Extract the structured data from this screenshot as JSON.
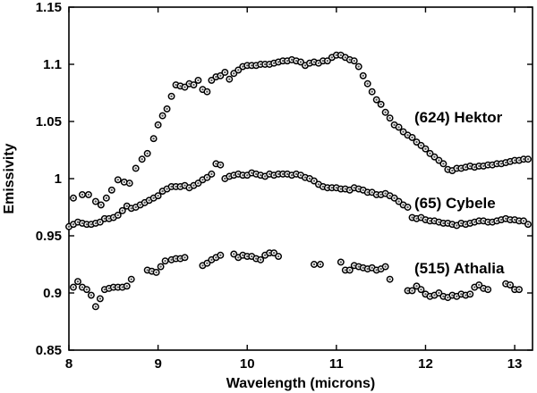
{
  "chart_data": {
    "type": "scatter",
    "xlabel": "Wavelength (microns)",
    "ylabel": "Emissivity",
    "xlim": [
      8,
      13.2
    ],
    "ylim": [
      0.85,
      1.15
    ],
    "xticks": [
      8,
      9,
      10,
      11,
      12,
      13
    ],
    "yticks": [
      0.85,
      0.9,
      0.95,
      1,
      1.05,
      1.1,
      1.15
    ],
    "ytick_labels": [
      "0.85",
      "0.9",
      "0.95",
      "1",
      "1.05",
      "1.1",
      "1.15"
    ],
    "grid": false,
    "marker": "open circle with dark center",
    "series": [
      {
        "name": "(624) Hektor",
        "x": [
          8.05,
          8.15,
          8.22,
          8.3,
          8.36,
          8.42,
          8.48,
          8.55,
          8.62,
          8.68,
          8.75,
          8.82,
          8.88,
          8.95,
          9.0,
          9.05,
          9.1,
          9.15,
          9.2,
          9.25,
          9.3,
          9.35,
          9.4,
          9.45,
          9.5,
          9.55,
          9.6,
          9.65,
          9.7,
          9.75,
          9.8,
          9.85,
          9.9,
          9.95,
          10.0,
          10.05,
          10.1,
          10.15,
          10.2,
          10.25,
          10.3,
          10.35,
          10.4,
          10.45,
          10.5,
          10.55,
          10.6,
          10.65,
          10.7,
          10.75,
          10.8,
          10.85,
          10.9,
          10.95,
          11.0,
          11.05,
          11.1,
          11.15,
          11.2,
          11.25,
          11.3,
          11.35,
          11.4,
          11.45,
          11.5,
          11.55,
          11.6,
          11.65,
          11.7,
          11.75,
          11.8,
          11.85,
          11.9,
          11.95,
          12.0,
          12.05,
          12.1,
          12.15,
          12.2,
          12.25,
          12.3,
          12.35,
          12.4,
          12.45,
          12.5,
          12.55,
          12.6,
          12.65,
          12.7,
          12.75,
          12.8,
          12.85,
          12.9,
          12.95,
          13.0,
          13.05,
          13.1,
          13.15
        ],
        "y": [
          0.983,
          0.986,
          0.986,
          0.98,
          0.977,
          0.983,
          0.99,
          0.999,
          0.997,
          0.996,
          1.009,
          1.017,
          1.022,
          1.035,
          1.047,
          1.055,
          1.061,
          1.072,
          1.082,
          1.081,
          1.08,
          1.083,
          1.082,
          1.086,
          1.078,
          1.076,
          1.086,
          1.089,
          1.09,
          1.093,
          1.087,
          1.092,
          1.095,
          1.098,
          1.099,
          1.099,
          1.099,
          1.1,
          1.1,
          1.1,
          1.101,
          1.102,
          1.103,
          1.103,
          1.104,
          1.103,
          1.102,
          1.099,
          1.101,
          1.102,
          1.101,
          1.103,
          1.103,
          1.106,
          1.108,
          1.108,
          1.106,
          1.104,
          1.103,
          1.098,
          1.09,
          1.083,
          1.076,
          1.069,
          1.065,
          1.058,
          1.053,
          1.047,
          1.045,
          1.041,
          1.038,
          1.036,
          1.032,
          1.029,
          1.026,
          1.022,
          1.019,
          1.016,
          1.013,
          1.008,
          1.007,
          1.009,
          1.009,
          1.01,
          1.011,
          1.01,
          1.011,
          1.011,
          1.012,
          1.012,
          1.013,
          1.013,
          1.014,
          1.015,
          1.016,
          1.016,
          1.017,
          1.017
        ]
      },
      {
        "name": "(65) Cybele",
        "x": [
          8.0,
          8.05,
          8.1,
          8.15,
          8.2,
          8.25,
          8.3,
          8.35,
          8.4,
          8.45,
          8.5,
          8.55,
          8.6,
          8.65,
          8.7,
          8.75,
          8.8,
          8.85,
          8.9,
          8.95,
          9.0,
          9.05,
          9.1,
          9.15,
          9.2,
          9.25,
          9.3,
          9.35,
          9.4,
          9.45,
          9.5,
          9.55,
          9.6,
          9.65,
          9.7,
          9.75,
          9.8,
          9.85,
          9.9,
          9.95,
          10.0,
          10.05,
          10.1,
          10.15,
          10.2,
          10.25,
          10.3,
          10.35,
          10.4,
          10.45,
          10.5,
          10.55,
          10.6,
          10.65,
          10.7,
          10.75,
          10.8,
          10.85,
          10.9,
          10.95,
          11.0,
          11.05,
          11.1,
          11.15,
          11.2,
          11.25,
          11.3,
          11.35,
          11.4,
          11.45,
          11.5,
          11.55,
          11.6,
          11.65,
          11.7,
          11.75,
          11.8,
          11.85,
          11.9,
          11.95,
          12.0,
          12.05,
          12.1,
          12.15,
          12.2,
          12.25,
          12.3,
          12.35,
          12.4,
          12.45,
          12.5,
          12.55,
          12.6,
          12.65,
          12.7,
          12.75,
          12.8,
          12.85,
          12.9,
          12.95,
          13.0,
          13.05,
          13.1,
          13.15
        ],
        "y": [
          0.958,
          0.96,
          0.962,
          0.961,
          0.96,
          0.96,
          0.961,
          0.962,
          0.965,
          0.965,
          0.966,
          0.968,
          0.972,
          0.976,
          0.974,
          0.975,
          0.977,
          0.979,
          0.981,
          0.983,
          0.985,
          0.989,
          0.991,
          0.993,
          0.993,
          0.993,
          0.994,
          0.992,
          0.994,
          0.996,
          0.999,
          1.001,
          1.004,
          1.013,
          1.012,
          1.0,
          1.002,
          1.003,
          1.004,
          1.003,
          1.003,
          1.005,
          1.004,
          1.003,
          1.002,
          1.004,
          1.003,
          1.004,
          1.004,
          1.004,
          1.003,
          1.004,
          1.003,
          1.001,
          1.0,
          0.998,
          0.995,
          0.993,
          0.992,
          0.992,
          0.992,
          0.991,
          0.991,
          0.99,
          0.992,
          0.991,
          0.99,
          0.988,
          0.988,
          0.986,
          0.986,
          0.987,
          0.985,
          0.983,
          0.98,
          0.977,
          0.975,
          0.966,
          0.965,
          0.966,
          0.964,
          0.963,
          0.963,
          0.962,
          0.961,
          0.961,
          0.96,
          0.959,
          0.961,
          0.96,
          0.961,
          0.962,
          0.963,
          0.963,
          0.962,
          0.962,
          0.963,
          0.964,
          0.965,
          0.964,
          0.964,
          0.963,
          0.963,
          0.96
        ]
      },
      {
        "name": "(515) Athalia",
        "x": [
          8.05,
          8.1,
          8.15,
          8.2,
          8.25,
          8.3,
          8.35,
          8.4,
          8.45,
          8.5,
          8.55,
          8.6,
          8.65,
          8.7,
          8.88,
          8.93,
          8.98,
          9.03,
          9.08,
          9.15,
          9.2,
          9.25,
          9.3,
          9.5,
          9.55,
          9.6,
          9.65,
          9.7,
          9.85,
          9.9,
          9.95,
          10.0,
          10.05,
          10.1,
          10.15,
          10.2,
          10.25,
          10.3,
          10.35,
          10.75,
          10.82,
          11.05,
          11.1,
          11.15,
          11.2,
          11.25,
          11.3,
          11.35,
          11.4,
          11.45,
          11.5,
          11.55,
          11.6,
          11.8,
          11.85,
          11.9,
          11.95,
          12.0,
          12.05,
          12.1,
          12.15,
          12.2,
          12.25,
          12.3,
          12.35,
          12.4,
          12.45,
          12.5,
          12.55,
          12.6,
          12.65,
          12.7,
          12.9,
          12.95,
          13.0,
          13.05
        ],
        "y": [
          0.905,
          0.91,
          0.905,
          0.903,
          0.898,
          0.888,
          0.895,
          0.903,
          0.904,
          0.905,
          0.905,
          0.905,
          0.906,
          0.912,
          0.92,
          0.919,
          0.918,
          0.923,
          0.928,
          0.929,
          0.93,
          0.93,
          0.931,
          0.924,
          0.926,
          0.929,
          0.931,
          0.933,
          0.934,
          0.931,
          0.933,
          0.932,
          0.932,
          0.93,
          0.929,
          0.933,
          0.935,
          0.935,
          0.932,
          0.925,
          0.925,
          0.927,
          0.92,
          0.92,
          0.924,
          0.923,
          0.922,
          0.921,
          0.922,
          0.92,
          0.921,
          0.923,
          0.912,
          0.902,
          0.902,
          0.906,
          0.903,
          0.899,
          0.897,
          0.898,
          0.9,
          0.897,
          0.896,
          0.898,
          0.897,
          0.899,
          0.898,
          0.899,
          0.905,
          0.907,
          0.904,
          0.903,
          0.908,
          0.907,
          0.903,
          0.903
        ]
      }
    ],
    "series_labels": [
      {
        "text": "(624) Hektor"
      },
      {
        "text": "(65) Cybele"
      },
      {
        "text": "(515) Athalia"
      }
    ]
  }
}
